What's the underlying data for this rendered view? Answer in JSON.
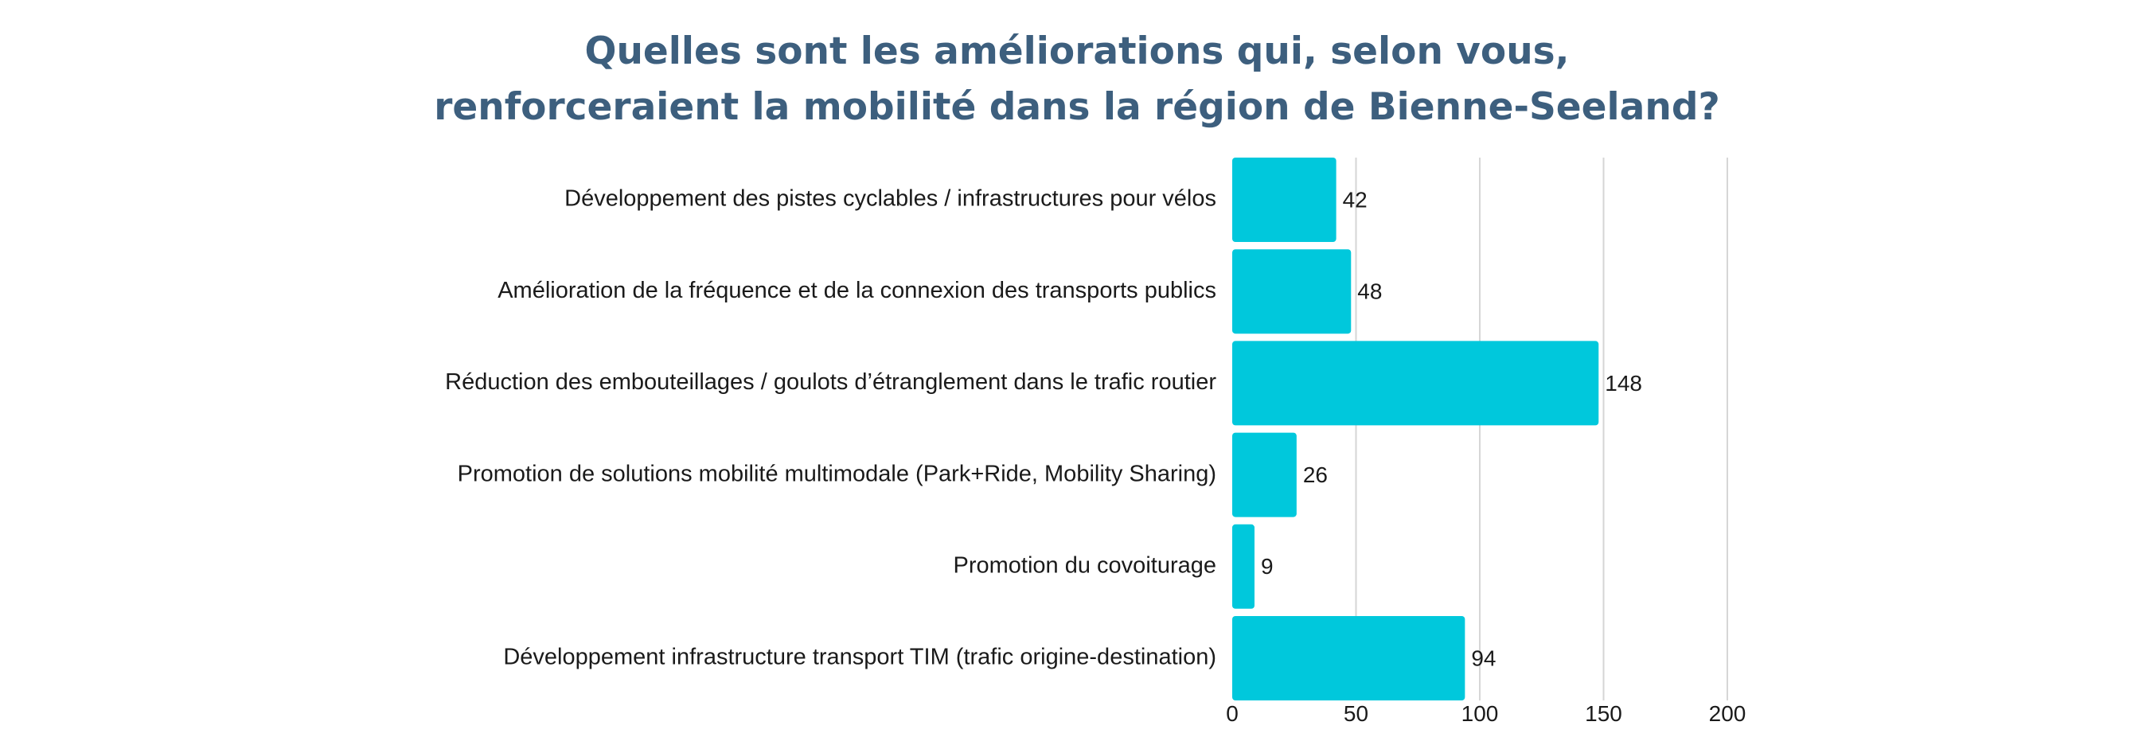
{
  "colors": {
    "title": "#3d5f7e",
    "bar": "#00c8dc",
    "grid": "#d6d6d6",
    "text": "#1a1a1a"
  },
  "chart_data": {
    "type": "bar",
    "orientation": "horizontal",
    "title_lines": [
      "Quelles sont les améliorations qui, selon vous,",
      "renforceraient la mobilité dans la région de Bienne-Seeland?"
    ],
    "categories": [
      "Développement des pistes cyclables / infrastructures pour vélos",
      "Amélioration de la fréquence et de la connexion des transports publics",
      "Réduction des embouteillages / goulots d’étranglement dans le trafic routier",
      "Promotion de solutions mobilité multimodale (Park+Ride, Mobility Sharing)",
      "Promotion du covoiturage",
      "Développement infrastructure transport TIM (trafic origine-destination)"
    ],
    "values": [
      42,
      48,
      148,
      26,
      9,
      94
    ],
    "xlim": [
      0,
      200
    ],
    "xticks": [
      "0",
      "50",
      "100",
      "150",
      "200"
    ],
    "grid": true,
    "legend": "none"
  }
}
